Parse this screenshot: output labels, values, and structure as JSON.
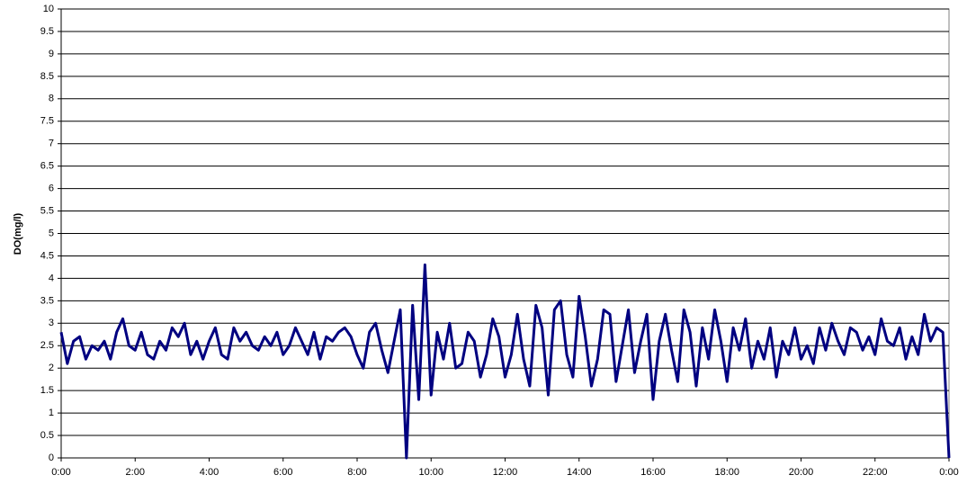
{
  "chart_data": {
    "type": "line",
    "y_label": "DO(mg/l)",
    "x": [
      0,
      10,
      20,
      30,
      40,
      50,
      60,
      70,
      80,
      90,
      100,
      110,
      120,
      130,
      140,
      150,
      160,
      170,
      180,
      190,
      200,
      210,
      220,
      230,
      240,
      250,
      260,
      270,
      280,
      290,
      300,
      310,
      320,
      330,
      340,
      350,
      360,
      370,
      380,
      390,
      400,
      410,
      420,
      430,
      440,
      450,
      460,
      470,
      480,
      490,
      500,
      510,
      520,
      530,
      540,
      550,
      560,
      570,
      580,
      590,
      600,
      610,
      620,
      630,
      640,
      650,
      660,
      670,
      680,
      690,
      700,
      710,
      720,
      730,
      740,
      750,
      760,
      770,
      780,
      790,
      800,
      810,
      820,
      830,
      840,
      850,
      860,
      870,
      880,
      890,
      900,
      910,
      920,
      930,
      940,
      950,
      960,
      970,
      980,
      990,
      1000,
      1010,
      1020,
      1030,
      1040,
      1050,
      1060,
      1070,
      1080,
      1090,
      1100,
      1110,
      1120,
      1130,
      1140,
      1150,
      1160,
      1170,
      1180,
      1190,
      1200,
      1210,
      1220,
      1230,
      1240,
      1250,
      1260,
      1270,
      1280,
      1290,
      1300,
      1310,
      1320,
      1330,
      1340,
      1350,
      1360,
      1370,
      1380,
      1390,
      1400,
      1410,
      1420,
      1430,
      1440
    ],
    "series": [
      {
        "name": "DO",
        "color": "#000080",
        "values": [
          2.8,
          2.1,
          2.6,
          2.7,
          2.2,
          2.5,
          2.4,
          2.6,
          2.2,
          2.8,
          3.1,
          2.5,
          2.4,
          2.8,
          2.3,
          2.2,
          2.6,
          2.4,
          2.9,
          2.7,
          3.0,
          2.3,
          2.6,
          2.2,
          2.6,
          2.9,
          2.3,
          2.2,
          2.9,
          2.6,
          2.8,
          2.5,
          2.4,
          2.7,
          2.5,
          2.8,
          2.3,
          2.5,
          2.9,
          2.6,
          2.3,
          2.8,
          2.2,
          2.7,
          2.6,
          2.8,
          2.9,
          2.7,
          2.3,
          2.0,
          2.8,
          3.0,
          2.4,
          1.9,
          2.6,
          3.3,
          0,
          3.4,
          1.3,
          4.3,
          1.4,
          2.8,
          2.2,
          3.0,
          2.0,
          2.1,
          2.8,
          2.6,
          1.8,
          2.3,
          3.1,
          2.7,
          1.8,
          2.3,
          3.2,
          2.2,
          1.6,
          3.4,
          2.9,
          1.4,
          3.3,
          3.5,
          2.3,
          1.8,
          3.6,
          2.7,
          1.6,
          2.2,
          3.3,
          3.2,
          1.7,
          2.5,
          3.3,
          1.9,
          2.6,
          3.2,
          1.3,
          2.6,
          3.2,
          2.4,
          1.7,
          3.3,
          2.8,
          1.6,
          2.9,
          2.2,
          3.3,
          2.6,
          1.7,
          2.9,
          2.4,
          3.1,
          2.0,
          2.6,
          2.2,
          2.9,
          1.8,
          2.6,
          2.3,
          2.9,
          2.2,
          2.5,
          2.1,
          2.9,
          2.4,
          3.0,
          2.6,
          2.3,
          2.9,
          2.8,
          2.4,
          2.7,
          2.3,
          3.1,
          2.6,
          2.5,
          2.9,
          2.2,
          2.7,
          2.3,
          3.2,
          2.6,
          2.9,
          2.8,
          0
        ]
      }
    ],
    "xlim": [
      0,
      1440
    ],
    "xticks": [
      {
        "value": 0,
        "label": "0:00"
      },
      {
        "value": 120,
        "label": "2:00"
      },
      {
        "value": 240,
        "label": "4:00"
      },
      {
        "value": 360,
        "label": "6:00"
      },
      {
        "value": 480,
        "label": "8:00"
      },
      {
        "value": 600,
        "label": "10:00"
      },
      {
        "value": 720,
        "label": "12:00"
      },
      {
        "value": 840,
        "label": "14:00"
      },
      {
        "value": 960,
        "label": "16:00"
      },
      {
        "value": 1080,
        "label": "18:00"
      },
      {
        "value": 1200,
        "label": "20:00"
      },
      {
        "value": 1320,
        "label": "22:00"
      },
      {
        "value": 1440,
        "label": "0:00"
      }
    ],
    "ylim": [
      0,
      10
    ],
    "yticks": [
      0,
      0.5,
      1,
      1.5,
      2,
      2.5,
      3,
      3.5,
      4,
      4.5,
      5,
      5.5,
      6,
      6.5,
      7,
      7.5,
      8,
      8.5,
      9,
      9.5,
      10
    ],
    "grid": true
  }
}
